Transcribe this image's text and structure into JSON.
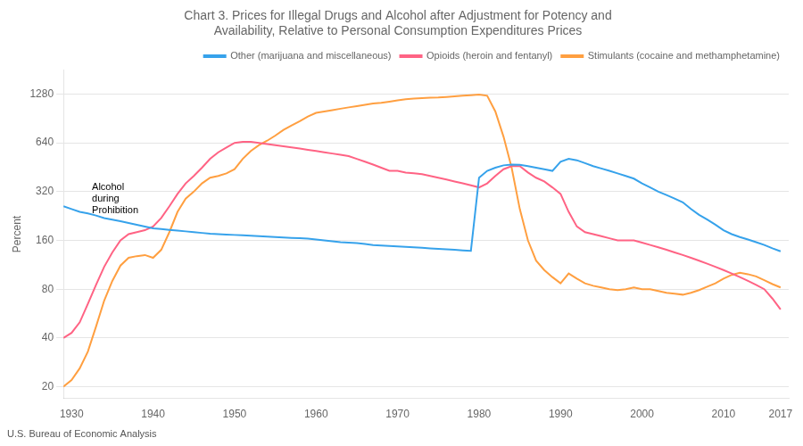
{
  "chart_data": {
    "type": "line",
    "title": "Chart 3. Prices for Illegal Drugs and Alcohol after Adjustment for Potency and\nAvailability, Relative to Personal Consumption Expenditures Prices",
    "ylabel": "Percent",
    "source": "U.S. Bureau of Economic Analysis",
    "annotation": {
      "text": "Alcohol\nduring\nProhibition",
      "x": 1932.5,
      "y": 290
    },
    "log": "y",
    "grid": "y",
    "legend": "upper right",
    "xlim": [
      1929,
      2018
    ],
    "xticks": [
      1930,
      1940,
      1950,
      1960,
      1970,
      1980,
      1990,
      2000,
      2010,
      2017
    ],
    "ylim": [
      17,
      1800
    ],
    "yticks": [
      20,
      40,
      80,
      160,
      320,
      640,
      1280
    ],
    "x": [
      1929,
      1930,
      1931,
      1932,
      1933,
      1934,
      1935,
      1936,
      1937,
      1938,
      1939,
      1940,
      1941,
      1942,
      1943,
      1944,
      1945,
      1946,
      1947,
      1948,
      1949,
      1950,
      1951,
      1952,
      1953,
      1954,
      1955,
      1956,
      1957,
      1958,
      1959,
      1960,
      1961,
      1962,
      1963,
      1964,
      1965,
      1966,
      1967,
      1968,
      1969,
      1970,
      1971,
      1972,
      1973,
      1974,
      1975,
      1976,
      1977,
      1978,
      1979,
      1980,
      1981,
      1982,
      1983,
      1984,
      1985,
      1986,
      1987,
      1988,
      1989,
      1990,
      1991,
      1992,
      1993,
      1994,
      1995,
      1996,
      1997,
      1998,
      1999,
      2000,
      2001,
      2002,
      2003,
      2004,
      2005,
      2006,
      2007,
      2008,
      2009,
      2010,
      2011,
      2012,
      2013,
      2014,
      2015,
      2016,
      2017
    ],
    "series": [
      {
        "name": "Other (marijuana and miscellaneous)",
        "values": [
          260,
          250,
          240,
          235,
          228,
          220,
          215,
          210,
          205,
          200,
          195,
          190,
          188,
          186,
          184,
          182,
          180,
          178,
          176,
          175,
          174,
          173,
          172,
          171,
          170,
          169,
          168,
          167,
          166,
          165,
          164,
          162,
          160,
          158,
          156,
          155,
          154,
          152,
          150,
          149,
          148,
          147,
          146,
          145,
          144,
          143,
          142,
          141,
          140,
          139,
          138,
          390,
          430,
          450,
          465,
          470,
          468,
          460,
          450,
          440,
          430,
          490,
          510,
          500,
          480,
          460,
          445,
          430,
          415,
          400,
          385,
          360,
          340,
          320,
          305,
          290,
          275,
          250,
          230,
          215,
          200,
          185,
          175,
          168,
          162,
          156,
          150,
          143,
          137
        ]
      },
      {
        "name": "Opioids (heroin and fentanyl)",
        "values": [
          40,
          43,
          50,
          65,
          85,
          110,
          135,
          160,
          175,
          180,
          185,
          195,
          220,
          260,
          310,
          360,
          400,
          450,
          510,
          560,
          600,
          640,
          650,
          650,
          640,
          630,
          620,
          610,
          600,
          590,
          580,
          570,
          560,
          550,
          540,
          530,
          510,
          490,
          470,
          450,
          430,
          430,
          420,
          415,
          410,
          400,
          390,
          380,
          370,
          360,
          350,
          340,
          360,
          400,
          440,
          460,
          460,
          420,
          390,
          370,
          340,
          310,
          240,
          195,
          180,
          175,
          170,
          165,
          160,
          160,
          160,
          155,
          150,
          145,
          140,
          135,
          130,
          125,
          120,
          115,
          110,
          105,
          100,
          95,
          90,
          85,
          80,
          70,
          60
        ]
      },
      {
        "name": "Stimulants (cocaine and methamphetamine)",
        "values": [
          20,
          22,
          26,
          33,
          47,
          68,
          90,
          112,
          125,
          128,
          130,
          125,
          140,
          180,
          240,
          290,
          320,
          360,
          390,
          400,
          415,
          440,
          510,
          570,
          620,
          660,
          710,
          770,
          820,
          870,
          930,
          980,
          1000,
          1020,
          1040,
          1060,
          1080,
          1100,
          1120,
          1130,
          1150,
          1170,
          1190,
          1200,
          1210,
          1215,
          1220,
          1230,
          1240,
          1250,
          1260,
          1270,
          1250,
          1000,
          700,
          450,
          250,
          160,
          120,
          105,
          95,
          87,
          100,
          93,
          87,
          84,
          82,
          80,
          79,
          80,
          82,
          80,
          80,
          78,
          76,
          75,
          74,
          76,
          79,
          83,
          87,
          93,
          98,
          101,
          99,
          96,
          91,
          86,
          82
        ]
      }
    ]
  }
}
